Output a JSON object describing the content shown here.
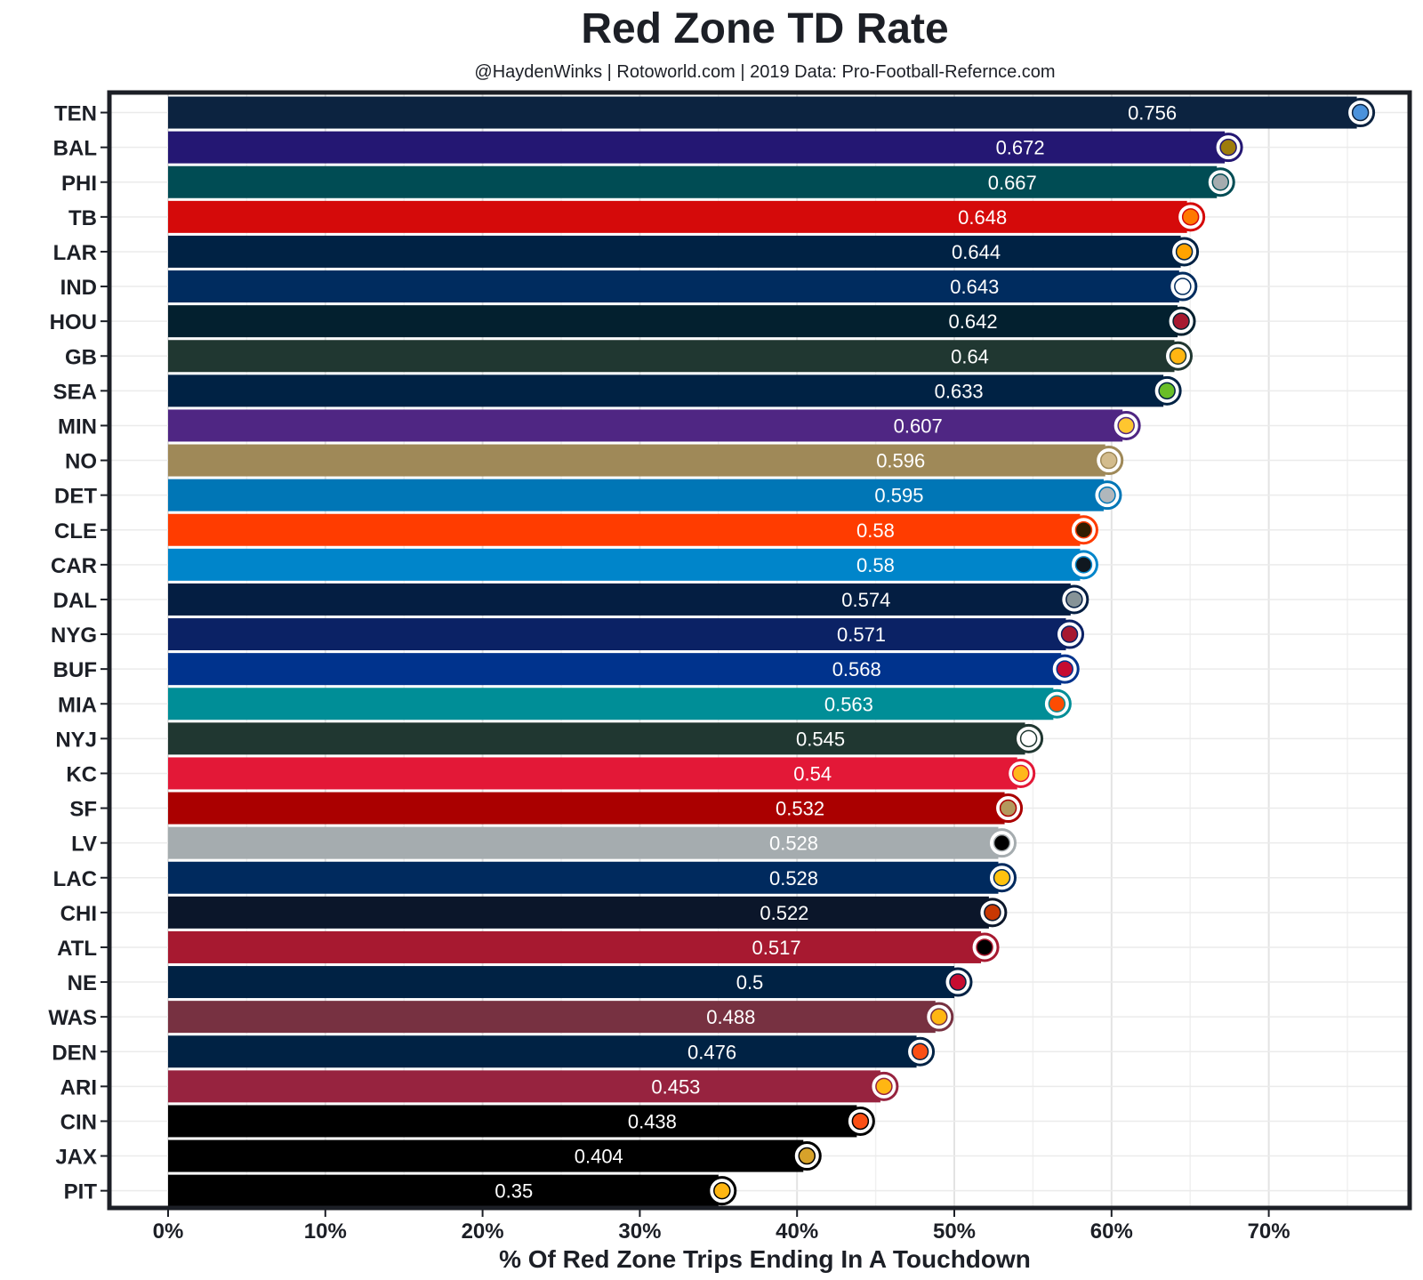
{
  "chart_data": {
    "type": "bar",
    "orientation": "horizontal",
    "title": "Red Zone TD Rate",
    "subtitle": "@HaydenWinks | Rotoworld.com | 2019 Data: Pro-Football-Refernce.com",
    "xlabel": "% Of Red Zone Trips Ending In A Touchdown",
    "ylabel": "",
    "xlim": [
      0,
      0.76
    ],
    "xticks": [
      0,
      0.1,
      0.2,
      0.3,
      0.4,
      0.5,
      0.6,
      0.7
    ],
    "xtick_labels": [
      "0%",
      "10%",
      "20%",
      "30%",
      "40%",
      "50%",
      "60%",
      "70%"
    ],
    "grid": true,
    "legend": "none",
    "categories": [
      "TEN",
      "BAL",
      "PHI",
      "TB",
      "LAR",
      "IND",
      "HOU",
      "GB",
      "SEA",
      "MIN",
      "NO",
      "DET",
      "CLE",
      "CAR",
      "DAL",
      "NYG",
      "BUF",
      "MIA",
      "NYJ",
      "KC",
      "SF",
      "LV",
      "LAC",
      "CHI",
      "ATL",
      "NE",
      "WAS",
      "DEN",
      "ARI",
      "CIN",
      "JAX",
      "PIT"
    ],
    "values": [
      0.756,
      0.672,
      0.667,
      0.648,
      0.644,
      0.643,
      0.642,
      0.64,
      0.633,
      0.607,
      0.596,
      0.595,
      0.58,
      0.58,
      0.574,
      0.571,
      0.568,
      0.563,
      0.545,
      0.54,
      0.532,
      0.528,
      0.528,
      0.522,
      0.517,
      0.5,
      0.488,
      0.476,
      0.453,
      0.438,
      0.404,
      0.35
    ],
    "value_labels": [
      "0.756",
      "0.672",
      "0.667",
      "0.648",
      "0.644",
      "0.643",
      "0.642",
      "0.64",
      "0.633",
      "0.607",
      "0.596",
      "0.595",
      "0.58",
      "0.58",
      "0.574",
      "0.571",
      "0.568",
      "0.563",
      "0.545",
      "0.54",
      "0.532",
      "0.528",
      "0.528",
      "0.522",
      "0.517",
      "0.5",
      "0.488",
      "0.476",
      "0.453",
      "0.438",
      "0.404",
      "0.35"
    ],
    "bar_colors": [
      "#0c2340",
      "#241773",
      "#004c54",
      "#d50a0a",
      "#002244",
      "#002c5f",
      "#03202f",
      "#203731",
      "#002244",
      "#4f2683",
      "#9f8958",
      "#0076b6",
      "#ff3c00",
      "#0085ca",
      "#041e42",
      "#0b2265",
      "#00338d",
      "#008e97",
      "#203731",
      "#e31837",
      "#aa0000",
      "#a5acaf",
      "#002a5e",
      "#0b162a",
      "#a71930",
      "#002244",
      "#773141",
      "#002244",
      "#97233f",
      "#000000",
      "#000000",
      "#000000"
    ],
    "logo_colors": [
      "#4b92db",
      "#9e7c0c",
      "#a5acaf",
      "#ff7900",
      "#ffa300",
      "#ffffff",
      "#a71930",
      "#ffb612",
      "#69be28",
      "#ffc62f",
      "#d3bc8d",
      "#b0b7bc",
      "#311d00",
      "#101820",
      "#869397",
      "#a71930",
      "#c60c30",
      "#fc4c02",
      "#ffffff",
      "#ffb81c",
      "#b3995d",
      "#000000",
      "#ffc20e",
      "#c83803",
      "#000000",
      "#c60c30",
      "#ffb612",
      "#fb4f14",
      "#ffb612",
      "#fb4f14",
      "#d7a22a",
      "#ffb612"
    ]
  }
}
